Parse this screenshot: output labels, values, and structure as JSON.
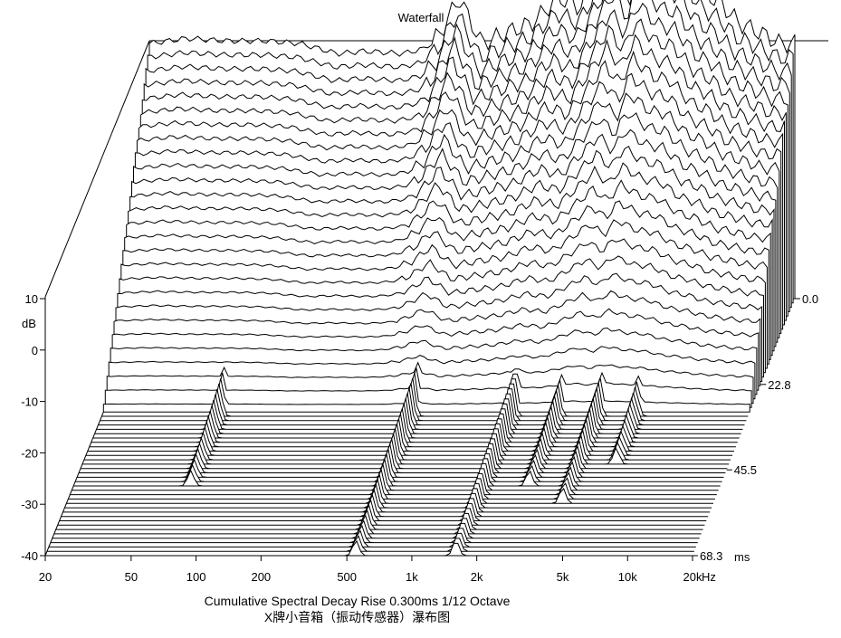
{
  "chart_data": {
    "type": "waterfall",
    "title": "Waterfall",
    "xlabel": "Hz",
    "ylabel": "dB",
    "zlabel": "ms",
    "x_scale": "log",
    "xlim": [
      20,
      20000
    ],
    "ylim": [
      -40,
      10
    ],
    "zlim": [
      0,
      68.3
    ],
    "x_ticks": [
      "20",
      "50",
      "100",
      "200",
      "500",
      "1k",
      "2k",
      "5k",
      "10k",
      "20k"
    ],
    "y_ticks": [
      "10",
      "0",
      "-10",
      "-20",
      "-30",
      "-40"
    ],
    "z_ticks": [
      "0.0",
      "22.8",
      "45.5",
      "68.3"
    ],
    "slices": 60,
    "first_slice_response_db": [
      {
        "f": 20,
        "db": 10
      },
      {
        "f": 30,
        "db": 11
      },
      {
        "f": 45,
        "db": 10.5
      },
      {
        "f": 70,
        "db": 10.5
      },
      {
        "f": 100,
        "db": 10
      },
      {
        "f": 150,
        "db": 8
      },
      {
        "f": 200,
        "db": 8.5
      },
      {
        "f": 300,
        "db": 8
      },
      {
        "f": 380,
        "db": 9
      },
      {
        "f": 450,
        "db": 12
      },
      {
        "f": 550,
        "db": 19
      },
      {
        "f": 700,
        "db": 10
      },
      {
        "f": 900,
        "db": 12
      },
      {
        "f": 1200,
        "db": 14
      },
      {
        "f": 1600,
        "db": 19
      },
      {
        "f": 2000,
        "db": 17
      },
      {
        "f": 2500,
        "db": 24
      },
      {
        "f": 3000,
        "db": 30
      },
      {
        "f": 3500,
        "db": 25
      },
      {
        "f": 4000,
        "db": 32
      },
      {
        "f": 5000,
        "db": 27
      },
      {
        "f": 6000,
        "db": 26
      },
      {
        "f": 7500,
        "db": 20
      },
      {
        "f": 9000,
        "db": 18
      },
      {
        "f": 11000,
        "db": 14
      },
      {
        "f": 14000,
        "db": 12
      },
      {
        "f": 17000,
        "db": 10
      },
      {
        "f": 20000,
        "db": 10
      }
    ],
    "resonances": [
      {
        "f": 70,
        "end_ms": 50
      },
      {
        "f": 550,
        "end_ms": 68.3
      },
      {
        "f": 1600,
        "end_ms": 68.3
      },
      {
        "f": 2600,
        "end_ms": 50
      },
      {
        "f": 4000,
        "end_ms": 55
      },
      {
        "f": 6000,
        "end_ms": 45
      }
    ],
    "caption": "Cumulative Spectral Decay   Rise 0.300ms   1/12 Octave",
    "caption2": "X牌小音箱（振动传感器）瀑布图"
  }
}
